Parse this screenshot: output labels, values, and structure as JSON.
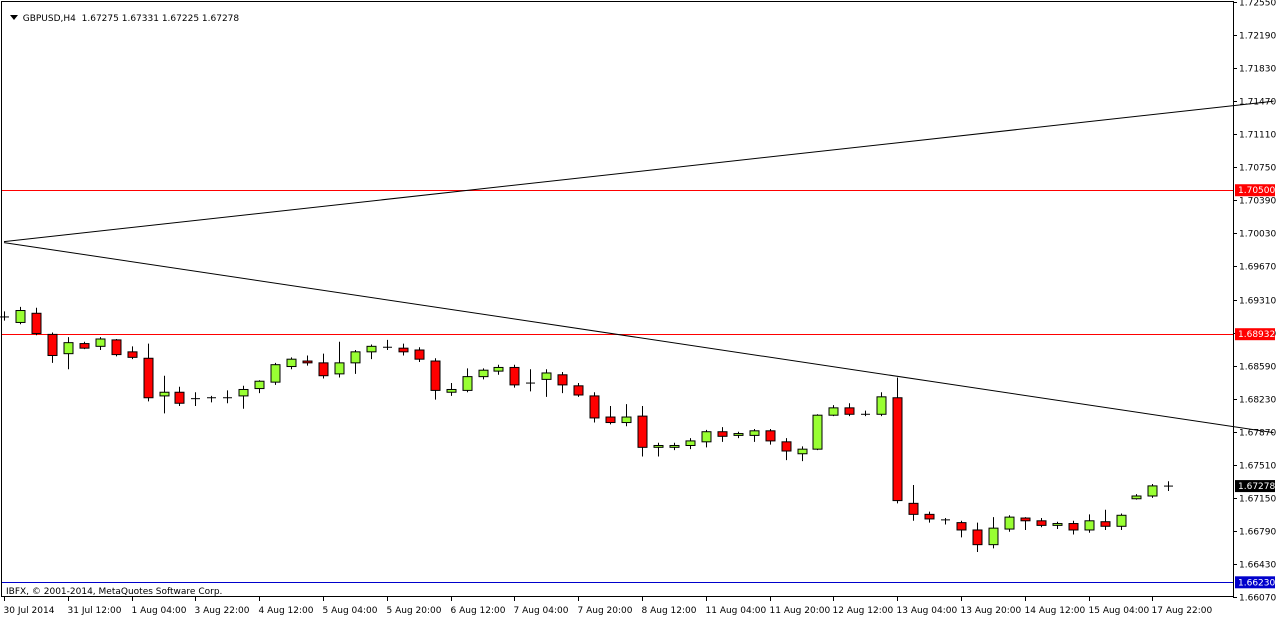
{
  "header": {
    "symbol": "GBPUSD,H4",
    "open": "1.67275",
    "high": "1.67331",
    "low": "1.67225",
    "close": "1.67278"
  },
  "copyright": "IBFX, © 2001-2014, MetaQuotes Software Corp.",
  "colors": {
    "bull": "#99ff33",
    "bear": "#ff0000",
    "wick": "#000000",
    "level": "#ff0000",
    "trendline": "#000000",
    "bid_tag": "#000000",
    "low_level": "#0000cc"
  },
  "chart_data": {
    "type": "candlestick",
    "symbol": "GBPUSD",
    "timeframe": "H4",
    "ylim": [
      1.6607,
      1.7255
    ],
    "y_ticks": [
      "1.72550",
      "1.72190",
      "1.71830",
      "1.71470",
      "1.71110",
      "1.70750",
      "1.70390",
      "1.70030",
      "1.69670",
      "1.69310",
      "1.68950",
      "1.68590",
      "1.68230",
      "1.67870",
      "1.67510",
      "1.67150",
      "1.66790",
      "1.66430",
      "1.66070"
    ],
    "x_ticks": [
      "30 Jul 2014",
      "31 Jul 12:00",
      "1 Aug 04:00",
      "3 Aug 22:00",
      "4 Aug 12:00",
      "5 Aug 04:00",
      "5 Aug 20:00",
      "6 Aug 12:00",
      "7 Aug 04:00",
      "7 Aug 20:00",
      "8 Aug 12:00",
      "11 Aug 04:00",
      "11 Aug 20:00",
      "12 Aug 12:00",
      "13 Aug 04:00",
      "13 Aug 20:00",
      "14 Aug 12:00",
      "15 Aug 04:00",
      "17 Aug 22:00"
    ],
    "current_bid": "1.67278",
    "levels": [
      {
        "value": 1.705,
        "label": "1.70500"
      },
      {
        "value": 1.68932,
        "label": "1.68932"
      }
    ],
    "low_level": {
      "value": 1.6623,
      "label": "1.66230"
    },
    "trendlines": [
      {
        "from": [
          0,
          1.6994
        ],
        "to": [
          79.6,
          1.7147
        ]
      },
      {
        "from": [
          0,
          1.6993
        ],
        "to": [
          79.6,
          1.6786
        ]
      }
    ],
    "candles": [
      {
        "o": 1.6912,
        "h": 1.6918,
        "l": 1.6908,
        "c": 1.6912
      },
      {
        "o": 1.6906,
        "h": 1.6923,
        "l": 1.6904,
        "c": 1.6919
      },
      {
        "o": 1.6916,
        "h": 1.6922,
        "l": 1.6892,
        "c": 1.6894
      },
      {
        "o": 1.6893,
        "h": 1.6895,
        "l": 1.6862,
        "c": 1.687
      },
      {
        "o": 1.6872,
        "h": 1.689,
        "l": 1.6855,
        "c": 1.6884
      },
      {
        "o": 1.6883,
        "h": 1.6885,
        "l": 1.6877,
        "c": 1.6878
      },
      {
        "o": 1.688,
        "h": 1.689,
        "l": 1.6876,
        "c": 1.6888
      },
      {
        "o": 1.6887,
        "h": 1.6888,
        "l": 1.6869,
        "c": 1.6871
      },
      {
        "o": 1.6874,
        "h": 1.688,
        "l": 1.6866,
        "c": 1.6868
      },
      {
        "o": 1.6867,
        "h": 1.6883,
        "l": 1.682,
        "c": 1.6824
      },
      {
        "o": 1.6826,
        "h": 1.6848,
        "l": 1.6807,
        "c": 1.683
      },
      {
        "o": 1.683,
        "h": 1.6836,
        "l": 1.6815,
        "c": 1.6818
      },
      {
        "o": 1.6823,
        "h": 1.683,
        "l": 1.6815,
        "c": 1.6823
      },
      {
        "o": 1.6823,
        "h": 1.6826,
        "l": 1.6819,
        "c": 1.6824
      },
      {
        "o": 1.6824,
        "h": 1.6832,
        "l": 1.6818,
        "c": 1.6824
      },
      {
        "o": 1.6826,
        "h": 1.6837,
        "l": 1.6812,
        "c": 1.6833
      },
      {
        "o": 1.6834,
        "h": 1.6843,
        "l": 1.6829,
        "c": 1.6842
      },
      {
        "o": 1.6841,
        "h": 1.6862,
        "l": 1.6838,
        "c": 1.686
      },
      {
        "o": 1.6858,
        "h": 1.6868,
        "l": 1.6855,
        "c": 1.6866
      },
      {
        "o": 1.6864,
        "h": 1.687,
        "l": 1.6859,
        "c": 1.6862
      },
      {
        "o": 1.6862,
        "h": 1.6872,
        "l": 1.6845,
        "c": 1.6848
      },
      {
        "o": 1.685,
        "h": 1.6885,
        "l": 1.6846,
        "c": 1.6862
      },
      {
        "o": 1.6862,
        "h": 1.6876,
        "l": 1.685,
        "c": 1.6874
      },
      {
        "o": 1.6874,
        "h": 1.6882,
        "l": 1.6866,
        "c": 1.688
      },
      {
        "o": 1.6879,
        "h": 1.6887,
        "l": 1.6876,
        "c": 1.6878
      },
      {
        "o": 1.6878,
        "h": 1.6883,
        "l": 1.687,
        "c": 1.6874
      },
      {
        "o": 1.6876,
        "h": 1.6879,
        "l": 1.6863,
        "c": 1.6866
      },
      {
        "o": 1.6864,
        "h": 1.6867,
        "l": 1.6822,
        "c": 1.6832
      },
      {
        "o": 1.683,
        "h": 1.684,
        "l": 1.6826,
        "c": 1.6833
      },
      {
        "o": 1.6832,
        "h": 1.6856,
        "l": 1.683,
        "c": 1.6847
      },
      {
        "o": 1.6847,
        "h": 1.6856,
        "l": 1.6844,
        "c": 1.6854
      },
      {
        "o": 1.6853,
        "h": 1.686,
        "l": 1.6849,
        "c": 1.6857
      },
      {
        "o": 1.6857,
        "h": 1.686,
        "l": 1.6835,
        "c": 1.6838
      },
      {
        "o": 1.684,
        "h": 1.6855,
        "l": 1.6831,
        "c": 1.684
      },
      {
        "o": 1.6844,
        "h": 1.6855,
        "l": 1.6825,
        "c": 1.6851
      },
      {
        "o": 1.6849,
        "h": 1.6852,
        "l": 1.6829,
        "c": 1.6838
      },
      {
        "o": 1.6837,
        "h": 1.684,
        "l": 1.6825,
        "c": 1.6827
      },
      {
        "o": 1.6826,
        "h": 1.683,
        "l": 1.6797,
        "c": 1.6802
      },
      {
        "o": 1.6803,
        "h": 1.6815,
        "l": 1.6795,
        "c": 1.6797
      },
      {
        "o": 1.6797,
        "h": 1.6817,
        "l": 1.6793,
        "c": 1.6803
      },
      {
        "o": 1.6804,
        "h": 1.6815,
        "l": 1.676,
        "c": 1.677
      },
      {
        "o": 1.677,
        "h": 1.6775,
        "l": 1.676,
        "c": 1.6772
      },
      {
        "o": 1.677,
        "h": 1.6775,
        "l": 1.6767,
        "c": 1.6772
      },
      {
        "o": 1.6772,
        "h": 1.678,
        "l": 1.6768,
        "c": 1.6777
      },
      {
        "o": 1.6776,
        "h": 1.6789,
        "l": 1.677,
        "c": 1.6787
      },
      {
        "o": 1.6787,
        "h": 1.6792,
        "l": 1.6776,
        "c": 1.6782
      },
      {
        "o": 1.6783,
        "h": 1.6787,
        "l": 1.678,
        "c": 1.6785
      },
      {
        "o": 1.6783,
        "h": 1.679,
        "l": 1.6776,
        "c": 1.6788
      },
      {
        "o": 1.6788,
        "h": 1.679,
        "l": 1.6773,
        "c": 1.6777
      },
      {
        "o": 1.6776,
        "h": 1.678,
        "l": 1.6756,
        "c": 1.6766
      },
      {
        "o": 1.6763,
        "h": 1.6771,
        "l": 1.6755,
        "c": 1.6768
      },
      {
        "o": 1.6768,
        "h": 1.6806,
        "l": 1.6767,
        "c": 1.6805
      },
      {
        "o": 1.6805,
        "h": 1.6816,
        "l": 1.6804,
        "c": 1.6813
      },
      {
        "o": 1.6813,
        "h": 1.6818,
        "l": 1.6804,
        "c": 1.6806
      },
      {
        "o": 1.6806,
        "h": 1.681,
        "l": 1.6804,
        "c": 1.6806
      },
      {
        "o": 1.6806,
        "h": 1.683,
        "l": 1.6804,
        "c": 1.6825
      },
      {
        "o": 1.6824,
        "h": 1.6846,
        "l": 1.6709,
        "c": 1.6712
      },
      {
        "o": 1.6709,
        "h": 1.6729,
        "l": 1.669,
        "c": 1.6697
      },
      {
        "o": 1.6697,
        "h": 1.67,
        "l": 1.6688,
        "c": 1.6692
      },
      {
        "o": 1.6691,
        "h": 1.6693,
        "l": 1.6686,
        "c": 1.669
      },
      {
        "o": 1.6688,
        "h": 1.669,
        "l": 1.6672,
        "c": 1.668
      },
      {
        "o": 1.668,
        "h": 1.6688,
        "l": 1.6656,
        "c": 1.6664
      },
      {
        "o": 1.6664,
        "h": 1.6694,
        "l": 1.666,
        "c": 1.6682
      },
      {
        "o": 1.6681,
        "h": 1.6696,
        "l": 1.6678,
        "c": 1.6694
      },
      {
        "o": 1.6693,
        "h": 1.6694,
        "l": 1.668,
        "c": 1.669
      },
      {
        "o": 1.669,
        "h": 1.6693,
        "l": 1.6683,
        "c": 1.6685
      },
      {
        "o": 1.6685,
        "h": 1.6689,
        "l": 1.6681,
        "c": 1.6687
      },
      {
        "o": 1.6687,
        "h": 1.669,
        "l": 1.6675,
        "c": 1.668
      },
      {
        "o": 1.668,
        "h": 1.6697,
        "l": 1.6677,
        "c": 1.669
      },
      {
        "o": 1.6689,
        "h": 1.6702,
        "l": 1.668,
        "c": 1.6684
      },
      {
        "o": 1.6684,
        "h": 1.6698,
        "l": 1.668,
        "c": 1.6696
      },
      {
        "o": 1.6714,
        "h": 1.6719,
        "l": 1.6713,
        "c": 1.6717
      },
      {
        "o": 1.6717,
        "h": 1.673,
        "l": 1.6715,
        "c": 1.6728
      },
      {
        "o": 1.67275,
        "h": 1.67331,
        "l": 1.67225,
        "c": 1.67278
      }
    ]
  }
}
